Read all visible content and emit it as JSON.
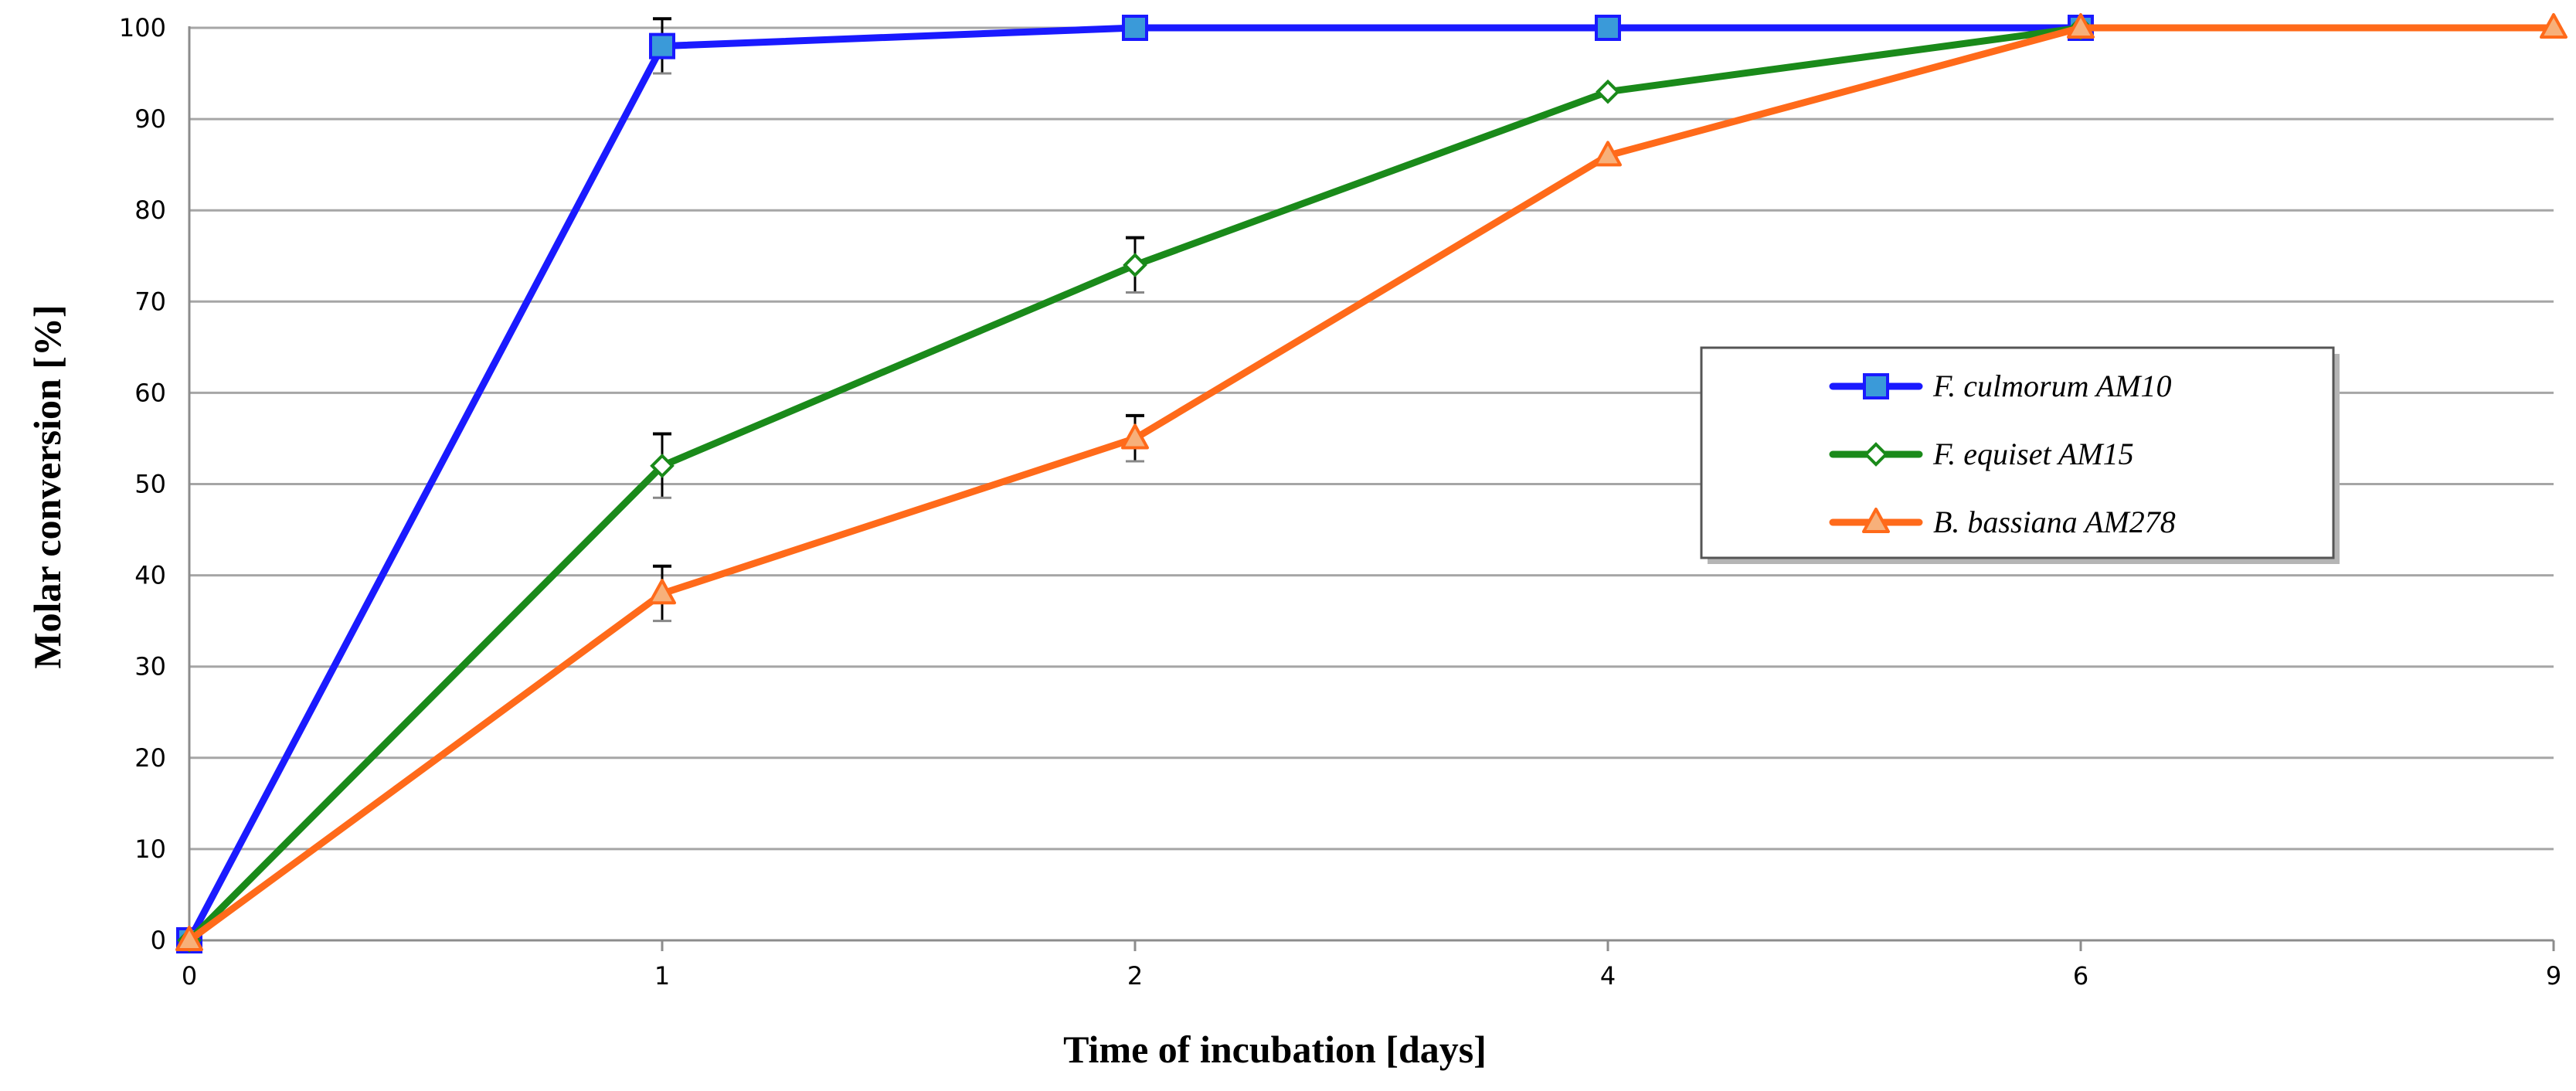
{
  "chart_data": {
    "type": "line",
    "x": [
      "0",
      "1",
      "2",
      "4",
      "6",
      "9"
    ],
    "xlabel": "Time of incubation [days]",
    "ylabel": "Molar conversion [%]",
    "ylim": [
      0,
      100
    ],
    "yticks": [
      "0",
      "10",
      "20",
      "30",
      "40",
      "50",
      "60",
      "70",
      "80",
      "90",
      "100"
    ],
    "grid": true,
    "legend_position": "right",
    "series": [
      {
        "name": "F. culmorum AM10",
        "color": "#1a1aff",
        "marker": "square",
        "marker_fill": "#3a9ad9",
        "values": [
          0,
          98,
          100,
          100,
          100,
          null
        ],
        "errors": [
          0,
          3,
          0,
          0,
          0,
          null
        ]
      },
      {
        "name": "F. equiset AM15",
        "color": "#1a8a1a",
        "marker": "diamond",
        "marker_fill": "#ffffff",
        "values": [
          0,
          52,
          74,
          93,
          100,
          null
        ],
        "errors": [
          0,
          3.5,
          3,
          0,
          0,
          null
        ]
      },
      {
        "name": "B. bassiana AM278",
        "color": "#ff6a1a",
        "marker": "triangle",
        "marker_fill": "#f7b07a",
        "values": [
          0,
          38,
          55,
          86,
          100,
          100
        ],
        "errors": [
          0,
          3,
          2.5,
          0,
          0,
          0
        ]
      }
    ]
  }
}
